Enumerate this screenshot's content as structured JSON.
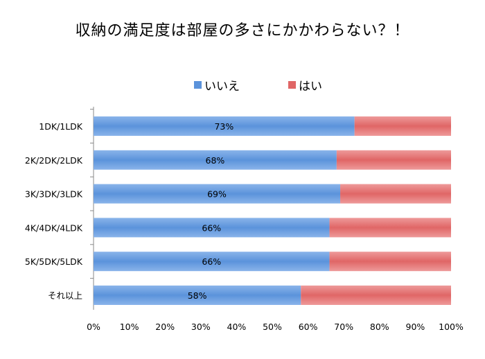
{
  "chart_data": {
    "type": "bar",
    "orientation": "horizontal",
    "stacked": true,
    "title": "収納の満足度は部屋の多さにかかわらない？！",
    "categories": [
      "1DK/1LDK",
      "2K/2DK/2LDK",
      "3K/3DK/3LDK",
      "4K/4DK/4LDK",
      "5K/5DK/5LDK",
      "それ以上"
    ],
    "series": [
      {
        "name": "いいえ",
        "values": [
          73,
          68,
          69,
          66,
          66,
          58
        ],
        "labels": [
          "73%",
          "68%",
          "69%",
          "66%",
          "66%",
          "58%"
        ],
        "color": "#5B93DB"
      },
      {
        "name": "はい",
        "values": [
          27,
          32,
          31,
          34,
          34,
          42
        ],
        "color": "#E06666"
      }
    ],
    "x_ticks": [
      "0%",
      "10%",
      "20%",
      "30%",
      "40%",
      "50%",
      "60%",
      "70%",
      "80%",
      "90%",
      "100%"
    ],
    "xlim": [
      0,
      100
    ],
    "grid": false,
    "legend_position": "top"
  }
}
